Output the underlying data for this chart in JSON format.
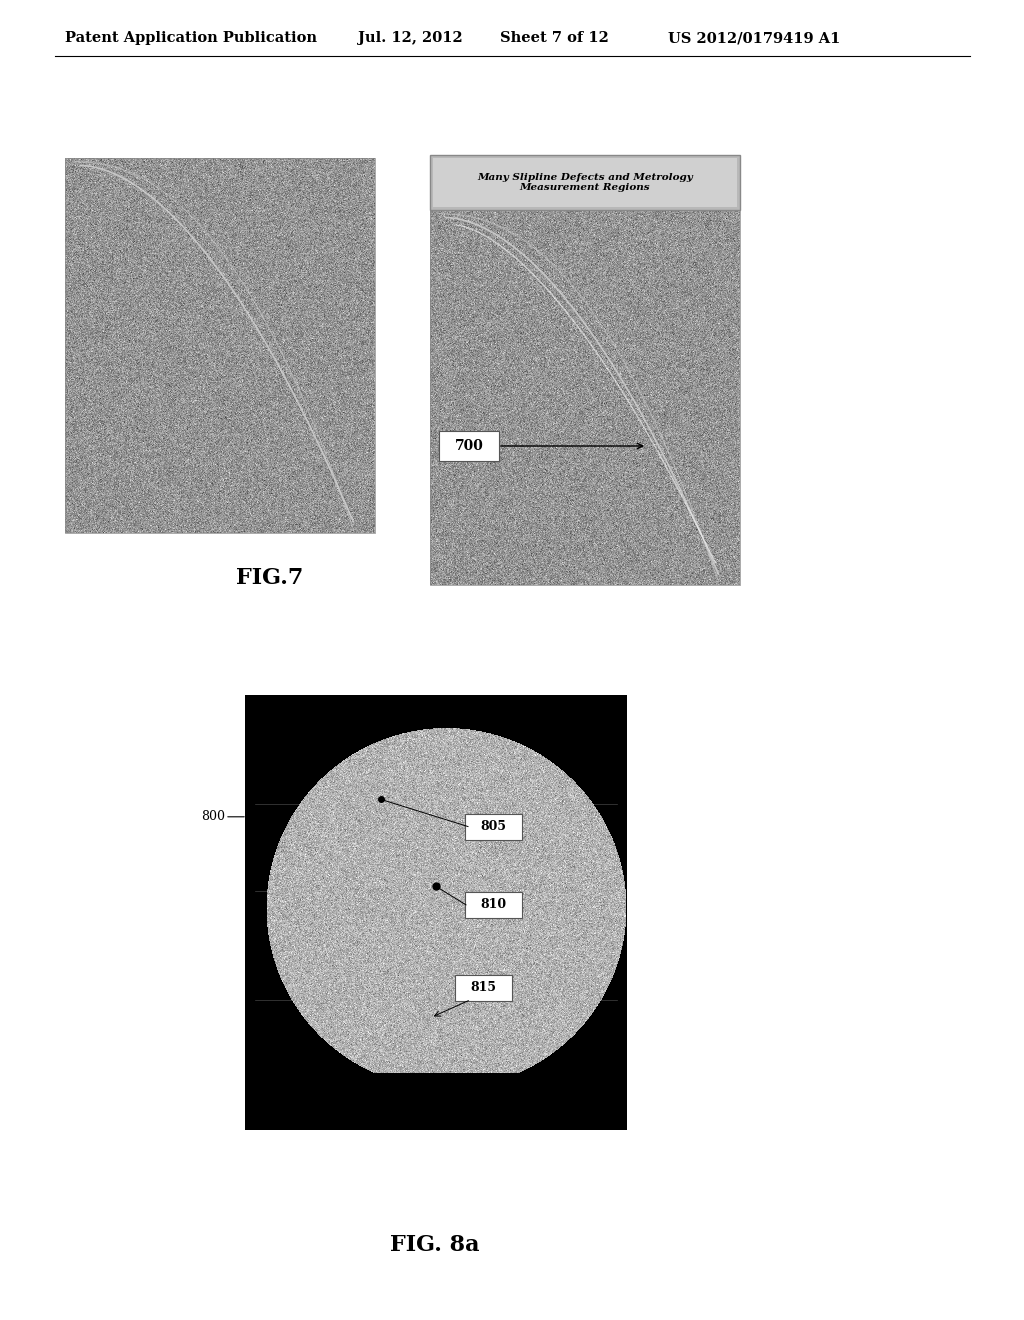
{
  "bg_color": "#ffffff",
  "header_text": "Patent Application Publication",
  "header_date": "Jul. 12, 2012",
  "header_sheet": "Sheet 7 of 12",
  "header_patent": "US 2012/0179419 A1",
  "fig7_label": "FIG.7",
  "fig8a_label": "FIG. 8a",
  "label_700": "700",
  "label_800": "800",
  "label_805": "805",
  "label_810": "810",
  "label_815": "815",
  "title_box_text": "Many Slipline Defects and Metrology\nMeasurement Regions",
  "img_gray": 0.58,
  "img_noise": 0.09,
  "title_box_color": "#c0c0c0",
  "title_box_inner": "#d8d8d8"
}
